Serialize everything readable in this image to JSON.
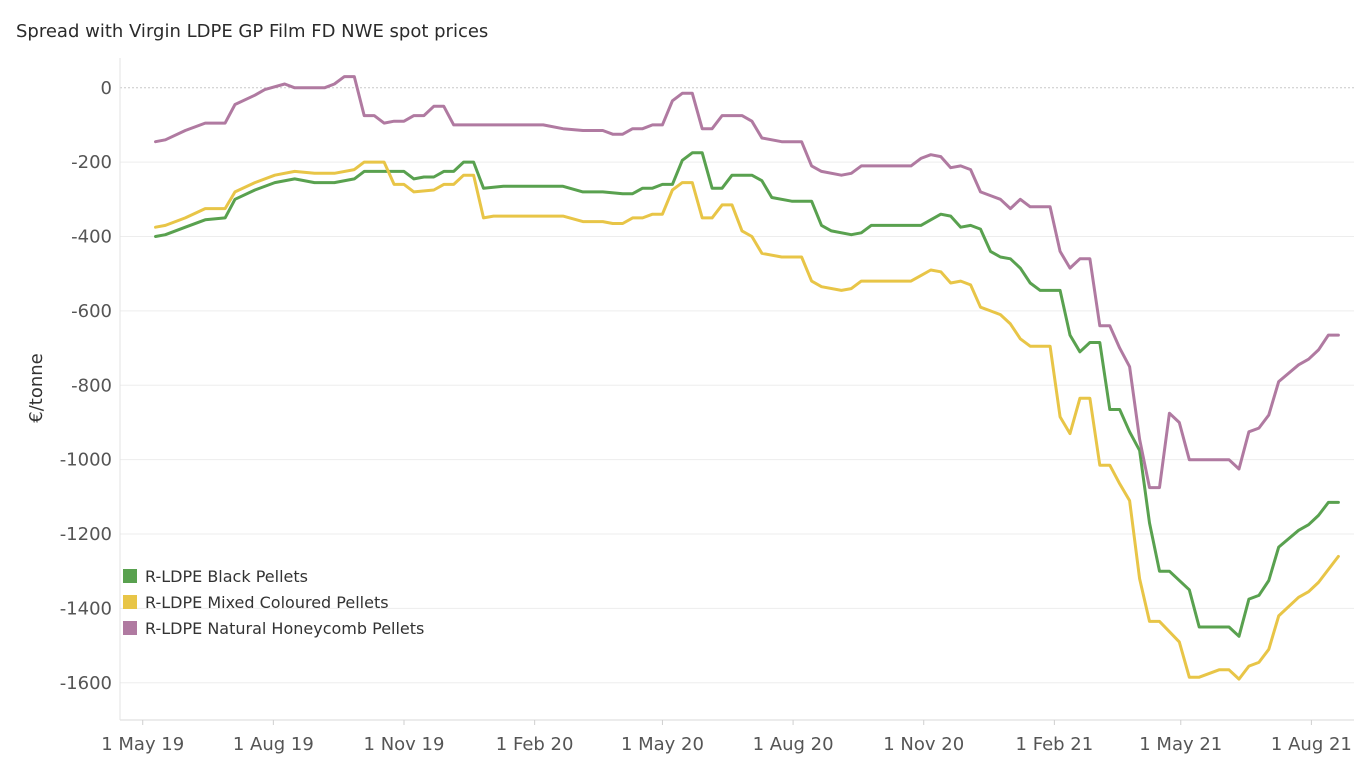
{
  "chart_data": {
    "type": "line",
    "title": "Spread with Virgin LDPE GP Film FD NWE spot prices",
    "ylabel": "€/tonne",
    "xlabel": "",
    "ylim": [
      -1700,
      80
    ],
    "yticks": [
      0,
      -200,
      -400,
      -600,
      -800,
      -1000,
      -1200,
      -1400,
      -1600
    ],
    "xlim": [
      "2019-04-15",
      "2021-08-31"
    ],
    "xticks": [
      {
        "date": "2019-05-01",
        "label": "1 May 19"
      },
      {
        "date": "2019-08-01",
        "label": "1 Aug 19"
      },
      {
        "date": "2019-11-01",
        "label": "1 Nov 19"
      },
      {
        "date": "2020-02-01",
        "label": "1 Feb 20"
      },
      {
        "date": "2020-05-01",
        "label": "1 May 20"
      },
      {
        "date": "2020-08-01",
        "label": "1 Aug 20"
      },
      {
        "date": "2020-11-01",
        "label": "1 Nov 20"
      },
      {
        "date": "2021-02-01",
        "label": "1 Feb 21"
      },
      {
        "date": "2021-05-01",
        "label": "1 May 21"
      },
      {
        "date": "2021-08-01",
        "label": "1 Aug 21"
      }
    ],
    "grid": true,
    "legend_position": "bottom-left",
    "series": [
      {
        "name": "R-LDPE Black Pellets",
        "color": "#59a14f",
        "points": [
          [
            "2019-05-10",
            -400
          ],
          [
            "2019-05-17",
            -395
          ],
          [
            "2019-05-31",
            -375
          ],
          [
            "2019-06-14",
            -355
          ],
          [
            "2019-06-28",
            -350
          ],
          [
            "2019-07-05",
            -300
          ],
          [
            "2019-07-19",
            -275
          ],
          [
            "2019-08-02",
            -255
          ],
          [
            "2019-08-16",
            -245
          ],
          [
            "2019-08-30",
            -255
          ],
          [
            "2019-09-13",
            -255
          ],
          [
            "2019-09-27",
            -245
          ],
          [
            "2019-10-04",
            -225
          ],
          [
            "2019-10-18",
            -225
          ],
          [
            "2019-11-01",
            -225
          ],
          [
            "2019-11-08",
            -245
          ],
          [
            "2019-11-15",
            -240
          ],
          [
            "2019-11-22",
            -240
          ],
          [
            "2019-11-29",
            -225
          ],
          [
            "2019-12-06",
            -225
          ],
          [
            "2019-12-13",
            -200
          ],
          [
            "2019-12-20",
            -200
          ],
          [
            "2019-12-27",
            -270
          ],
          [
            "2020-01-10",
            -265
          ],
          [
            "2020-02-07",
            -265
          ],
          [
            "2020-02-21",
            -265
          ],
          [
            "2020-03-06",
            -280
          ],
          [
            "2020-03-20",
            -280
          ],
          [
            "2020-04-03",
            -285
          ],
          [
            "2020-04-10",
            -285
          ],
          [
            "2020-04-17",
            -270
          ],
          [
            "2020-04-24",
            -270
          ],
          [
            "2020-05-01",
            -260
          ],
          [
            "2020-05-08",
            -260
          ],
          [
            "2020-05-15",
            -195
          ],
          [
            "2020-05-22",
            -175
          ],
          [
            "2020-05-29",
            -175
          ],
          [
            "2020-06-05",
            -270
          ],
          [
            "2020-06-12",
            -270
          ],
          [
            "2020-06-19",
            -235
          ],
          [
            "2020-07-03",
            -235
          ],
          [
            "2020-07-10",
            -250
          ],
          [
            "2020-07-17",
            -295
          ],
          [
            "2020-07-31",
            -305
          ],
          [
            "2020-08-14",
            -305
          ],
          [
            "2020-08-21",
            -370
          ],
          [
            "2020-08-28",
            -385
          ],
          [
            "2020-09-11",
            -395
          ],
          [
            "2020-09-18",
            -390
          ],
          [
            "2020-09-25",
            -370
          ],
          [
            "2020-10-30",
            -370
          ],
          [
            "2020-11-06",
            -355
          ],
          [
            "2020-11-13",
            -340
          ],
          [
            "2020-11-20",
            -345
          ],
          [
            "2020-11-27",
            -375
          ],
          [
            "2020-12-04",
            -370
          ],
          [
            "2020-12-11",
            -380
          ],
          [
            "2020-12-18",
            -440
          ],
          [
            "2020-12-25",
            -455
          ],
          [
            "2021-01-01",
            -460
          ],
          [
            "2021-01-08",
            -485
          ],
          [
            "2021-01-15",
            -525
          ],
          [
            "2021-01-22",
            -545
          ],
          [
            "2021-01-29",
            -545
          ],
          [
            "2021-02-05",
            -545
          ],
          [
            "2021-02-12",
            -665
          ],
          [
            "2021-02-19",
            -710
          ],
          [
            "2021-02-26",
            -685
          ],
          [
            "2021-03-05",
            -685
          ],
          [
            "2021-03-12",
            -865
          ],
          [
            "2021-03-19",
            -865
          ],
          [
            "2021-03-26",
            -925
          ],
          [
            "2021-04-02",
            -975
          ],
          [
            "2021-04-09",
            -1170
          ],
          [
            "2021-04-16",
            -1300
          ],
          [
            "2021-04-23",
            -1300
          ],
          [
            "2021-05-07",
            -1350
          ],
          [
            "2021-05-14",
            -1450
          ],
          [
            "2021-05-21",
            -1450
          ],
          [
            "2021-06-04",
            -1450
          ],
          [
            "2021-06-11",
            -1475
          ],
          [
            "2021-06-18",
            -1375
          ],
          [
            "2021-06-25",
            -1365
          ],
          [
            "2021-07-02",
            -1325
          ],
          [
            "2021-07-09",
            -1235
          ],
          [
            "2021-07-23",
            -1190
          ],
          [
            "2021-07-30",
            -1175
          ],
          [
            "2021-08-06",
            -1150
          ],
          [
            "2021-08-13",
            -1115
          ],
          [
            "2021-08-20",
            -1115
          ]
        ]
      },
      {
        "name": "R-LDPE Mixed Coloured Pellets",
        "color": "#e8c547",
        "points": [
          [
            "2019-05-10",
            -375
          ],
          [
            "2019-05-17",
            -370
          ],
          [
            "2019-05-31",
            -350
          ],
          [
            "2019-06-14",
            -325
          ],
          [
            "2019-06-28",
            -325
          ],
          [
            "2019-07-05",
            -280
          ],
          [
            "2019-07-19",
            -255
          ],
          [
            "2019-08-02",
            -235
          ],
          [
            "2019-08-16",
            -225
          ],
          [
            "2019-08-30",
            -230
          ],
          [
            "2019-09-13",
            -230
          ],
          [
            "2019-09-27",
            -220
          ],
          [
            "2019-10-04",
            -200
          ],
          [
            "2019-10-18",
            -200
          ],
          [
            "2019-10-25",
            -260
          ],
          [
            "2019-11-01",
            -260
          ],
          [
            "2019-11-08",
            -280
          ],
          [
            "2019-11-22",
            -275
          ],
          [
            "2019-11-29",
            -260
          ],
          [
            "2019-12-06",
            -260
          ],
          [
            "2019-12-13",
            -235
          ],
          [
            "2019-12-20",
            -235
          ],
          [
            "2019-12-27",
            -350
          ],
          [
            "2020-01-03",
            -345
          ],
          [
            "2020-02-21",
            -345
          ],
          [
            "2020-03-06",
            -360
          ],
          [
            "2020-03-20",
            -360
          ],
          [
            "2020-03-27",
            -365
          ],
          [
            "2020-04-03",
            -365
          ],
          [
            "2020-04-10",
            -350
          ],
          [
            "2020-04-17",
            -350
          ],
          [
            "2020-04-24",
            -340
          ],
          [
            "2020-05-01",
            -340
          ],
          [
            "2020-05-08",
            -275
          ],
          [
            "2020-05-15",
            -255
          ],
          [
            "2020-05-22",
            -255
          ],
          [
            "2020-05-29",
            -350
          ],
          [
            "2020-06-05",
            -350
          ],
          [
            "2020-06-12",
            -315
          ],
          [
            "2020-06-19",
            -315
          ],
          [
            "2020-06-26",
            -385
          ],
          [
            "2020-07-03",
            -400
          ],
          [
            "2020-07-10",
            -445
          ],
          [
            "2020-07-24",
            -455
          ],
          [
            "2020-08-07",
            -455
          ],
          [
            "2020-08-14",
            -520
          ],
          [
            "2020-08-21",
            -535
          ],
          [
            "2020-09-04",
            -545
          ],
          [
            "2020-09-11",
            -540
          ],
          [
            "2020-09-18",
            -520
          ],
          [
            "2020-10-23",
            -520
          ],
          [
            "2020-10-30",
            -505
          ],
          [
            "2020-11-06",
            -490
          ],
          [
            "2020-11-13",
            -495
          ],
          [
            "2020-11-20",
            -525
          ],
          [
            "2020-11-27",
            -520
          ],
          [
            "2020-12-04",
            -530
          ],
          [
            "2020-12-11",
            -590
          ],
          [
            "2020-12-18",
            -600
          ],
          [
            "2020-12-25",
            -610
          ],
          [
            "2021-01-01",
            -635
          ],
          [
            "2021-01-08",
            -675
          ],
          [
            "2021-01-15",
            -695
          ],
          [
            "2021-01-29",
            -695
          ],
          [
            "2021-02-05",
            -885
          ],
          [
            "2021-02-12",
            -930
          ],
          [
            "2021-02-19",
            -835
          ],
          [
            "2021-02-26",
            -835
          ],
          [
            "2021-03-05",
            -1015
          ],
          [
            "2021-03-12",
            -1015
          ],
          [
            "2021-03-19",
            -1065
          ],
          [
            "2021-03-26",
            -1110
          ],
          [
            "2021-04-02",
            -1320
          ],
          [
            "2021-04-09",
            -1435
          ],
          [
            "2021-04-16",
            -1435
          ],
          [
            "2021-04-30",
            -1490
          ],
          [
            "2021-05-07",
            -1585
          ],
          [
            "2021-05-14",
            -1585
          ],
          [
            "2021-05-28",
            -1565
          ],
          [
            "2021-06-04",
            -1565
          ],
          [
            "2021-06-11",
            -1590
          ],
          [
            "2021-06-18",
            -1555
          ],
          [
            "2021-06-25",
            -1545
          ],
          [
            "2021-07-02",
            -1510
          ],
          [
            "2021-07-09",
            -1420
          ],
          [
            "2021-07-23",
            -1370
          ],
          [
            "2021-07-30",
            -1355
          ],
          [
            "2021-08-06",
            -1330
          ],
          [
            "2021-08-20",
            -1260
          ]
        ]
      },
      {
        "name": "R-LDPE Natural Honeycomb Pellets",
        "color": "#b07aa1",
        "points": [
          [
            "2019-05-10",
            -145
          ],
          [
            "2019-05-17",
            -140
          ],
          [
            "2019-05-31",
            -115
          ],
          [
            "2019-06-14",
            -95
          ],
          [
            "2019-06-28",
            -95
          ],
          [
            "2019-07-05",
            -45
          ],
          [
            "2019-07-19",
            -20
          ],
          [
            "2019-07-26",
            -5
          ],
          [
            "2019-08-09",
            10
          ],
          [
            "2019-08-16",
            0
          ],
          [
            "2019-09-06",
            0
          ],
          [
            "2019-09-13",
            10
          ],
          [
            "2019-09-20",
            30
          ],
          [
            "2019-09-27",
            30
          ],
          [
            "2019-10-04",
            -75
          ],
          [
            "2019-10-11",
            -75
          ],
          [
            "2019-10-18",
            -95
          ],
          [
            "2019-10-25",
            -90
          ],
          [
            "2019-11-01",
            -90
          ],
          [
            "2019-11-08",
            -75
          ],
          [
            "2019-11-15",
            -75
          ],
          [
            "2019-11-22",
            -50
          ],
          [
            "2019-11-29",
            -50
          ],
          [
            "2019-12-06",
            -100
          ],
          [
            "2019-12-13",
            -100
          ],
          [
            "2020-02-07",
            -100
          ],
          [
            "2020-02-21",
            -110
          ],
          [
            "2020-03-06",
            -115
          ],
          [
            "2020-03-20",
            -115
          ],
          [
            "2020-03-27",
            -125
          ],
          [
            "2020-04-03",
            -125
          ],
          [
            "2020-04-10",
            -110
          ],
          [
            "2020-04-17",
            -110
          ],
          [
            "2020-04-24",
            -100
          ],
          [
            "2020-05-01",
            -100
          ],
          [
            "2020-05-08",
            -35
          ],
          [
            "2020-05-15",
            -15
          ],
          [
            "2020-05-22",
            -15
          ],
          [
            "2020-05-29",
            -110
          ],
          [
            "2020-06-05",
            -110
          ],
          [
            "2020-06-12",
            -75
          ],
          [
            "2020-06-26",
            -75
          ],
          [
            "2020-07-03",
            -90
          ],
          [
            "2020-07-10",
            -135
          ],
          [
            "2020-07-24",
            -145
          ],
          [
            "2020-08-07",
            -145
          ],
          [
            "2020-08-14",
            -210
          ],
          [
            "2020-08-21",
            -225
          ],
          [
            "2020-09-04",
            -235
          ],
          [
            "2020-09-11",
            -230
          ],
          [
            "2020-09-18",
            -210
          ],
          [
            "2020-10-23",
            -210
          ],
          [
            "2020-10-30",
            -190
          ],
          [
            "2020-11-06",
            -180
          ],
          [
            "2020-11-13",
            -185
          ],
          [
            "2020-11-20",
            -215
          ],
          [
            "2020-11-27",
            -210
          ],
          [
            "2020-12-04",
            -220
          ],
          [
            "2020-12-11",
            -280
          ],
          [
            "2020-12-18",
            -290
          ],
          [
            "2020-12-25",
            -300
          ],
          [
            "2021-01-01",
            -325
          ],
          [
            "2021-01-08",
            -300
          ],
          [
            "2021-01-15",
            -320
          ],
          [
            "2021-01-29",
            -320
          ],
          [
            "2021-02-05",
            -440
          ],
          [
            "2021-02-12",
            -485
          ],
          [
            "2021-02-19",
            -460
          ],
          [
            "2021-02-26",
            -460
          ],
          [
            "2021-03-05",
            -640
          ],
          [
            "2021-03-12",
            -640
          ],
          [
            "2021-03-19",
            -700
          ],
          [
            "2021-03-26",
            -750
          ],
          [
            "2021-04-02",
            -945
          ],
          [
            "2021-04-09",
            -1075
          ],
          [
            "2021-04-16",
            -1075
          ],
          [
            "2021-04-23",
            -875
          ],
          [
            "2021-04-30",
            -900
          ],
          [
            "2021-05-07",
            -1000
          ],
          [
            "2021-05-14",
            -1000
          ],
          [
            "2021-06-04",
            -1000
          ],
          [
            "2021-06-11",
            -1025
          ],
          [
            "2021-06-18",
            -925
          ],
          [
            "2021-06-25",
            -915
          ],
          [
            "2021-07-02",
            -880
          ],
          [
            "2021-07-09",
            -790
          ],
          [
            "2021-07-23",
            -745
          ],
          [
            "2021-07-30",
            -730
          ],
          [
            "2021-08-06",
            -705
          ],
          [
            "2021-08-13",
            -665
          ],
          [
            "2021-08-20",
            -665
          ]
        ]
      }
    ]
  }
}
